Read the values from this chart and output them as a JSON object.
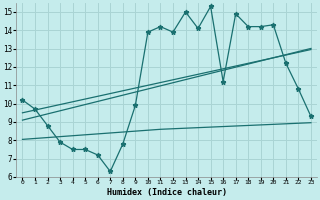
{
  "x": [
    0,
    1,
    2,
    3,
    4,
    5,
    6,
    7,
    8,
    9,
    10,
    11,
    12,
    13,
    14,
    15,
    16,
    17,
    18,
    19,
    20,
    21,
    22,
    23
  ],
  "y_main": [
    10.2,
    9.7,
    8.8,
    7.9,
    7.5,
    7.5,
    7.2,
    6.3,
    7.8,
    9.9,
    13.9,
    14.2,
    13.9,
    15.0,
    14.1,
    15.3,
    11.2,
    14.9,
    14.2,
    14.2,
    14.3,
    12.2,
    10.8,
    9.3
  ],
  "y_reg1": [
    9.5,
    9.65,
    9.8,
    9.95,
    10.1,
    10.25,
    10.4,
    10.55,
    10.7,
    10.85,
    11.0,
    11.15,
    11.3,
    11.45,
    11.6,
    11.75,
    11.9,
    12.05,
    12.2,
    12.35,
    12.5,
    12.65,
    12.8,
    12.95
  ],
  "y_reg2": [
    9.1,
    9.27,
    9.44,
    9.61,
    9.78,
    9.95,
    10.12,
    10.29,
    10.46,
    10.63,
    10.8,
    10.97,
    11.14,
    11.31,
    11.48,
    11.65,
    11.82,
    11.99,
    12.16,
    12.33,
    12.5,
    12.67,
    12.84,
    13.01
  ],
  "y_flat": [
    8.05,
    8.1,
    8.15,
    8.2,
    8.25,
    8.3,
    8.35,
    8.4,
    8.45,
    8.5,
    8.55,
    8.6,
    8.63,
    8.66,
    8.69,
    8.72,
    8.75,
    8.78,
    8.81,
    8.84,
    8.87,
    8.9,
    8.93,
    8.96
  ],
  "color": "#1a7070",
  "bg_color": "#c5ecec",
  "grid_color": "#aad4d4",
  "xlabel": "Humidex (Indice chaleur)",
  "ylim": [
    6,
    15.5
  ],
  "xlim": [
    -0.5,
    23.5
  ],
  "yticks": [
    6,
    7,
    8,
    9,
    10,
    11,
    12,
    13,
    14,
    15
  ],
  "xticks": [
    0,
    1,
    2,
    3,
    4,
    5,
    6,
    7,
    8,
    9,
    10,
    11,
    12,
    13,
    14,
    15,
    16,
    17,
    18,
    19,
    20,
    21,
    22,
    23
  ]
}
